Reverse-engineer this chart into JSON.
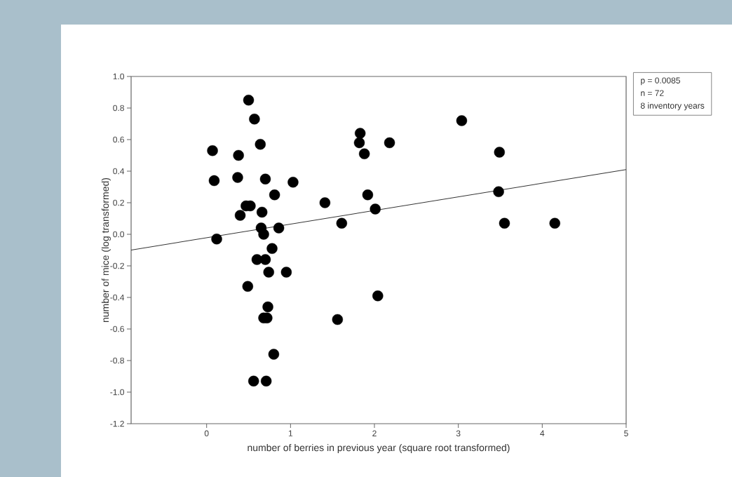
{
  "chart_data": {
    "type": "scatter",
    "xlabel": "number of berries in previous year (square root transformed)",
    "ylabel": "number of mice (log transformed)",
    "xlim": [
      -0.9,
      5
    ],
    "ylim": [
      -1.2,
      1.0
    ],
    "xticks": [
      0,
      1,
      2,
      3,
      4,
      5
    ],
    "yticks": [
      {
        "value": -1.2,
        "label": "-1.2"
      },
      {
        "value": -1.0,
        "label": "-1.0"
      },
      {
        "value": -0.8,
        "label": "-0.8"
      },
      {
        "value": -0.6,
        "label": "-0.6"
      },
      {
        "value": -0.4,
        "label": "-0.4"
      },
      {
        "value": -0.2,
        "label": "-0.2"
      },
      {
        "value": 0.0,
        "label": "0.0"
      },
      {
        "value": 0.2,
        "label": "0.2"
      },
      {
        "value": 0.4,
        "label": "0.4"
      },
      {
        "value": 0.6,
        "label": "0.6"
      },
      {
        "value": 0.8,
        "label": "0.8"
      },
      {
        "value": 1.0,
        "label": "1.0"
      }
    ],
    "annotations": [
      "p = 0.0085",
      "n = 72",
      "8 inventory years"
    ],
    "series": [
      {
        "color": "#000000",
        "marker": "circle",
        "x": [
          0.07,
          0.09,
          0.12,
          0.38,
          0.37,
          0.4,
          0.47,
          0.52,
          0.5,
          0.57,
          0.64,
          0.7,
          0.66,
          0.81,
          1.03,
          0.65,
          0.86,
          0.68,
          0.78,
          0.6,
          0.7,
          0.74,
          0.95,
          0.49,
          0.73,
          0.68,
          0.72,
          0.8,
          0.56,
          0.71,
          1.41,
          1.61,
          1.83,
          1.82,
          1.88,
          2.18,
          1.92,
          2.01,
          3.04,
          3.49,
          3.48,
          3.55,
          4.15,
          2.04,
          1.56
        ],
        "values": [
          0.53,
          0.34,
          -0.03,
          0.5,
          0.36,
          0.12,
          0.18,
          0.18,
          0.85,
          0.73,
          0.57,
          0.35,
          0.14,
          0.25,
          0.33,
          0.04,
          0.04,
          0.0,
          -0.09,
          -0.16,
          -0.16,
          -0.24,
          -0.24,
          -0.33,
          -0.46,
          -0.53,
          -0.53,
          -0.76,
          -0.93,
          -0.93,
          0.2,
          0.07,
          0.64,
          0.58,
          0.51,
          0.58,
          0.25,
          0.16,
          0.72,
          0.52,
          0.27,
          0.07,
          0.07,
          -0.39,
          -0.54
        ]
      },
      {
        "type": "line",
        "color": "#333333",
        "x": [
          -0.9,
          5
        ],
        "values": [
          -0.1,
          0.41
        ]
      }
    ]
  }
}
